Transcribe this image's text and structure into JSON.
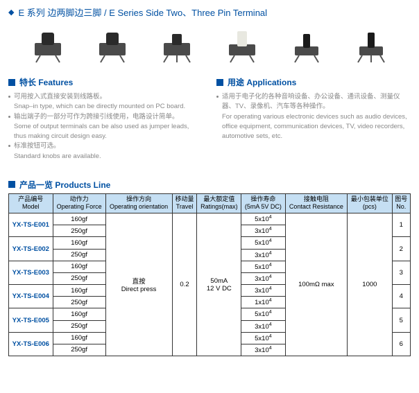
{
  "header": {
    "title": "E 系列 边两脚边三脚 / E Series Side Two、Three Pin Terminal"
  },
  "features": {
    "heading": "特长 Features",
    "items": [
      {
        "zh": "可用按入式直接安装到线路板。",
        "en": "Snap–in type, which can be directly mounted on PC board."
      },
      {
        "zh": "输出端子的一部分可作为跨接引线使用，电路设计简单。",
        "en": "Some of output terminals can be also used as jumper leads, thus making circuit design easy."
      },
      {
        "zh": "标准按钮可选。",
        "en": "Standard knobs are available."
      }
    ]
  },
  "applications": {
    "heading": "用途 Applications",
    "items": [
      {
        "zh": "适用于电子化的各种音响设备、办公设备、通讯设备、测量仪器、TV、录像机、汽车等各种操作。",
        "en": "For operating various electronic devices such as audio devices, office equipment, communication devices, TV, video recorders, automotive sets, etc."
      }
    ]
  },
  "products": {
    "heading": "产品一览 Products Line",
    "columns": {
      "model": {
        "zh": "产品编号",
        "en": "Model"
      },
      "force": {
        "zh": "动作力",
        "en": "Operating Force"
      },
      "orient": {
        "zh": "操作方向",
        "en": "Operating orientation"
      },
      "travel": {
        "zh": "移动量",
        "en": "Travel"
      },
      "ratings": {
        "zh": "最大额定值",
        "en": "Ratings(max)"
      },
      "life": {
        "zh": "操作寿命",
        "en": "(5mA 5V DC)"
      },
      "contact": {
        "zh": "接触电阻",
        "en": "Contact Resistance"
      },
      "pack": {
        "zh": "最小包装单位",
        "en": "(pcs)"
      },
      "no": {
        "zh": "图号",
        "en": "No."
      }
    },
    "shared": {
      "orientation_zh": "直按",
      "orientation_en": "Direct press",
      "travel": "0.2",
      "ratings_top": "50mA",
      "ratings_bot": "12 V DC",
      "contact": "100mΩ max",
      "pack": "1000"
    },
    "rows": [
      {
        "model": "YX-TS-E001",
        "force1": "160gf",
        "force2": "250gf",
        "life1": "5x10",
        "life2": "3x10",
        "no": "1"
      },
      {
        "model": "YX-TS-E002",
        "force1": "160gf",
        "force2": "250gf",
        "life1": "5x10",
        "life2": "3x10",
        "no": "2"
      },
      {
        "model": "YX-TS-E003",
        "force1": "160gf",
        "force2": "250gf",
        "life1": "5x10",
        "life2": "3x10",
        "no": "3"
      },
      {
        "model": "YX-TS-E004",
        "force1": "160gf",
        "force2": "250gf",
        "life1": "3x10",
        "life2": "1x10",
        "no": "4"
      },
      {
        "model": "YX-TS-E005",
        "force1": "160gf",
        "force2": "250gf",
        "life1": "5x10",
        "life2": "3x10",
        "no": "5"
      },
      {
        "model": "YX-TS-E006",
        "force1": "160gf",
        "force2": "250gf",
        "life1": "5x10",
        "life2": "3x10",
        "no": "6"
      }
    ],
    "life_exp": "4"
  },
  "colors": {
    "brand": "#0050a2",
    "header_bg": "#c5dff3",
    "text_muted": "#888",
    "border": "#333"
  }
}
